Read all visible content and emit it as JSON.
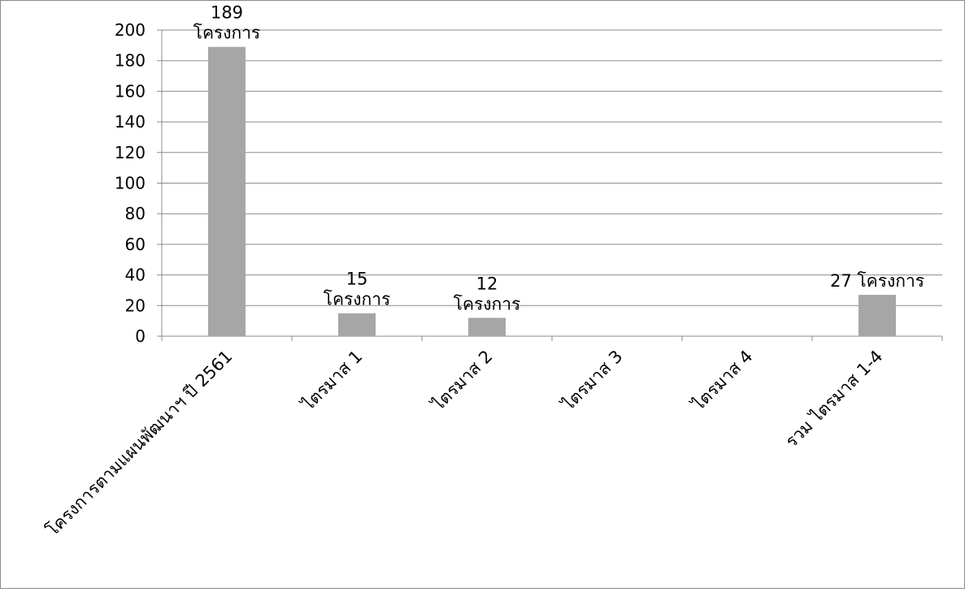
{
  "chart_data": {
    "type": "bar",
    "title": "",
    "xlabel": "",
    "ylabel": "",
    "ylim": [
      0,
      200
    ],
    "yticks": [
      0,
      20,
      40,
      60,
      80,
      100,
      120,
      140,
      160,
      180,
      200
    ],
    "grid": true,
    "legend": "none",
    "bar_color": "#a6a6a6",
    "categories": [
      "โครงการตามแผนพัฒนาฯ ปี 2561",
      "ไตรมาส 1",
      "ไตรมาส 2",
      "ไตรมาส 3",
      "ไตรมาส 4",
      "รวม ไตรมาส 1-4"
    ],
    "values": [
      189,
      15,
      12,
      0,
      0,
      27
    ],
    "data_labels": [
      [
        "189",
        "โครงการ"
      ],
      [
        "15",
        "โครงการ"
      ],
      [
        "12",
        "โครงการ"
      ],
      [],
      [],
      [
        "27 โครงการ"
      ]
    ]
  }
}
